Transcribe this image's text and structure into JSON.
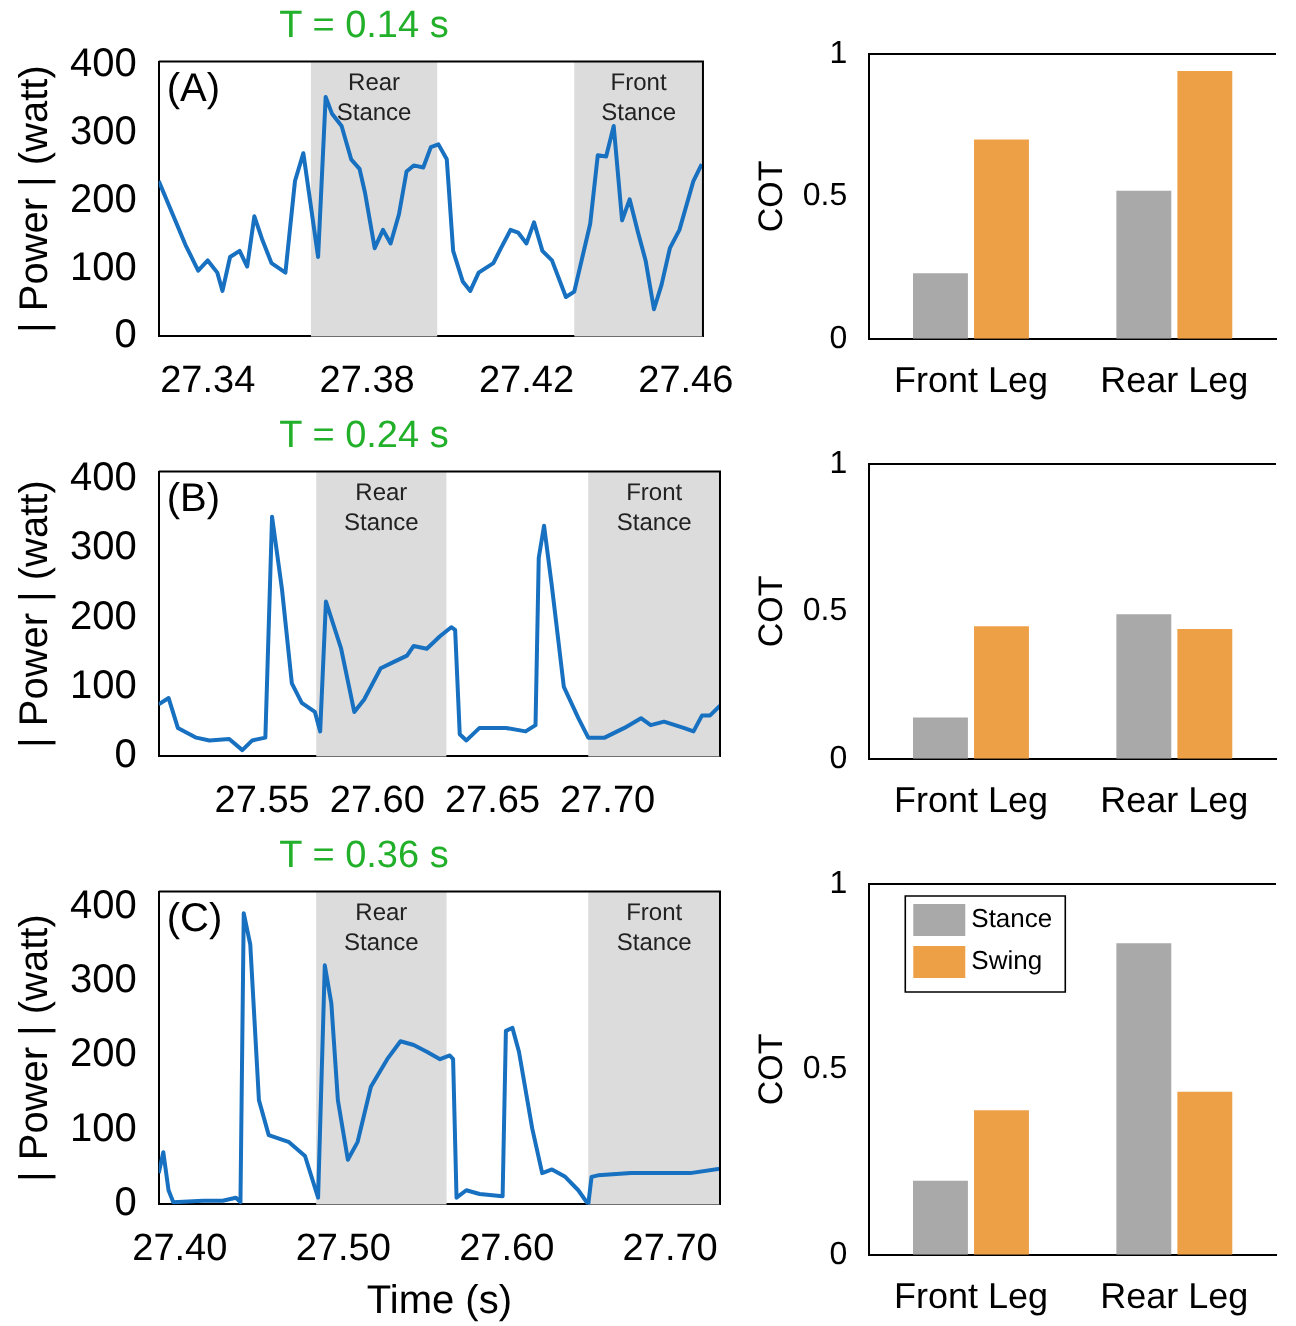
{
  "chart_data": [
    {
      "type": "line",
      "title": "T = 0.14 s",
      "ylabel": "| Power | (watt)",
      "annotations": [
        "(A)"
      ],
      "marker": "none",
      "legend": false,
      "grid": false,
      "xlim": [
        27.3277,
        27.4643
      ],
      "xticks": [
        27.34,
        27.38,
        27.42,
        27.46
      ],
      "ylim": [
        0,
        405
      ],
      "yticks": [
        0,
        100,
        200,
        300,
        400
      ],
      "bands": [
        {
          "axis": "x",
          "from": 27.3659,
          "to": 27.3976,
          "label": "Rear Stance",
          "color": "#dcdcdc"
        },
        {
          "axis": "x",
          "from": 27.432,
          "to": 27.4643,
          "label": "Front Stance",
          "color": "#dcdcdc"
        }
      ],
      "series": [
        {
          "color": "#1770c0",
          "x": [
            27.3277,
            27.3344,
            27.3376,
            27.34,
            27.3424,
            27.3437,
            27.3456,
            27.348,
            27.3499,
            27.3517,
            27.3536,
            27.356,
            27.3595,
            27.3619,
            27.364,
            27.3677,
            27.3696,
            27.3712,
            27.3736,
            27.376,
            27.3781,
            27.3795,
            27.3819,
            27.384,
            27.3859,
            27.388,
            27.3899,
            27.3917,
            27.3941,
            27.396,
            27.3979,
            27.4,
            27.4016,
            27.404,
            27.4059,
            27.408,
            27.4117,
            27.4136,
            27.416,
            27.4179,
            27.42,
            27.4219,
            27.424,
            27.4264,
            27.4299,
            27.432,
            27.436,
            27.4379,
            27.44,
            27.4419,
            27.444,
            27.4459,
            27.448,
            27.4499,
            27.452,
            27.4539,
            27.456,
            27.4584,
            27.4619,
            27.464
          ],
          "values": [
            229,
            135,
            97,
            112,
            94,
            67,
            117,
            126,
            103,
            177,
            144,
            108,
            94,
            229,
            270,
            117,
            353,
            328,
            310,
            261,
            247,
            211,
            130,
            157,
            137,
            180,
            243,
            252,
            249,
            279,
            283,
            261,
            126,
            81,
            67,
            94,
            108,
            130,
            157,
            153,
            137,
            168,
            126,
            112,
            58,
            66,
            166,
            267,
            265,
            310,
            171,
            202,
            153,
            112,
            40,
            76,
            130,
            157,
            229,
            254
          ]
        }
      ]
    },
    {
      "type": "bar",
      "ylabel": "COT",
      "legend": false,
      "grid": false,
      "categories": [
        "Front Leg",
        "Rear Leg"
      ],
      "ylim": [
        0,
        1
      ],
      "yticks": [
        0,
        0.5,
        1
      ],
      "series": [
        {
          "color": "#a9a9a9",
          "values": [
            0.23,
            0.52
          ]
        },
        {
          "color": "#eea047",
          "values": [
            0.7,
            0.94
          ]
        }
      ]
    },
    {
      "type": "line",
      "title": "T = 0.24 s",
      "ylabel": "| Power | (watt)",
      "annotations": [
        "(B)"
      ],
      "marker": "none",
      "legend": false,
      "grid": false,
      "xlim": [
        27.5051,
        27.7488
      ],
      "xticks": [
        27.55,
        {
          "value": 27.6,
          "label": "27.60"
        },
        27.65,
        {
          "value": 27.7,
          "label": "27.70"
        }
      ],
      "ylim": [
        0,
        410
      ],
      "yticks": [
        0,
        100,
        200,
        300,
        400
      ],
      "bands": [
        {
          "axis": "x",
          "from": 27.5735,
          "to": 27.63,
          "label": "Rear Stance",
          "color": "#dcdcdc"
        },
        {
          "axis": "x",
          "from": 27.6916,
          "to": 27.7488,
          "label": "Front Stance",
          "color": "#dcdcdc"
        }
      ],
      "series": [
        {
          "color": "#1770c0",
          "x": [
            27.5051,
            27.5094,
            27.5134,
            27.5214,
            27.5271,
            27.5357,
            27.5414,
            27.5457,
            27.5514,
            27.5543,
            27.5586,
            27.5629,
            27.5672,
            27.5729,
            27.5752,
            27.5777,
            27.5843,
            27.59,
            27.5943,
            27.6015,
            27.6072,
            27.6129,
            27.6158,
            27.6215,
            27.6272,
            27.6321,
            27.6338,
            27.6358,
            27.6387,
            27.6444,
            27.6501,
            27.6558,
            27.6644,
            27.6687,
            27.6701,
            27.6724,
            27.6758,
            27.681,
            27.6873,
            27.6916,
            27.6987,
            27.7073,
            27.7145,
            27.7187,
            27.7245,
            27.733,
            27.7373,
            27.741,
            27.7445,
            27.7488
          ],
          "values": [
            75,
            84,
            41,
            27,
            23,
            25,
            9,
            23,
            27,
            345,
            241,
            105,
            77,
            64,
            36,
            223,
            155,
            64,
            82,
            127,
            136,
            145,
            159,
            155,
            173,
            186,
            182,
            32,
            23,
            41,
            41,
            41,
            36,
            45,
            286,
            332,
            245,
            100,
            55,
            27,
            27,
            41,
            55,
            45,
            50,
            41,
            36,
            59,
            59,
            73
          ]
        }
      ]
    },
    {
      "type": "bar",
      "ylabel": "COT",
      "legend": false,
      "grid": false,
      "categories": [
        "Front Leg",
        "Rear Leg"
      ],
      "ylim": [
        0,
        1
      ],
      "yticks": [
        0,
        0.5,
        1
      ],
      "series": [
        {
          "color": "#a9a9a9",
          "values": [
            0.14,
            0.49
          ]
        },
        {
          "color": "#eea047",
          "values": [
            0.45,
            0.44
          ]
        }
      ]
    },
    {
      "type": "line",
      "title": "T = 0.36 s",
      "xlabel": "Time (s)",
      "ylabel": "| Power | (watt)",
      "annotations": [
        "(C)"
      ],
      "marker": "none",
      "legend": false,
      "grid": false,
      "xlim": [
        27.3871,
        27.7305
      ],
      "xticks": [
        {
          "value": 27.4,
          "label": "27.40"
        },
        {
          "value": 27.5,
          "label": "27.50"
        },
        {
          "value": 27.6,
          "label": "27.60"
        },
        {
          "value": 27.7,
          "label": "27.70"
        }
      ],
      "ylim": [
        0,
        420
      ],
      "yticks": [
        0,
        100,
        200,
        300,
        400
      ],
      "bands": [
        {
          "axis": "x",
          "from": 27.4834,
          "to": 27.5632,
          "label": "Rear Stance",
          "color": "#dcdcdc"
        },
        {
          "axis": "x",
          "from": 27.6499,
          "to": 27.7305,
          "label": "Front Stance",
          "color": "#dcdcdc"
        }
      ],
      "series": [
        {
          "color": "#1770c0",
          "x": [
            27.3871,
            27.3899,
            27.3931,
            27.396,
            27.4141,
            27.4262,
            27.4343,
            27.4371,
            27.4391,
            27.4431,
            27.4484,
            27.4544,
            27.4665,
            27.4766,
            27.4846,
            27.4887,
            27.4927,
            27.4967,
            27.5028,
            27.5088,
            27.5169,
            27.5269,
            27.535,
            27.5431,
            27.5511,
            27.5592,
            27.5652,
            27.5672,
            27.5693,
            27.5753,
            27.5834,
            27.5975,
            27.5995,
            27.6035,
            27.6075,
            27.6156,
            27.6217,
            27.6277,
            27.6358,
            27.6438,
            27.6499,
            27.6519,
            27.6559,
            27.676,
            27.6962,
            27.7123,
            27.7305
          ],
          "values": [
            42,
            70,
            19,
            3,
            5,
            5,
            9,
            3,
            391,
            349,
            140,
            93,
            84,
            65,
            9,
            321,
            270,
            140,
            60,
            84,
            158,
            195,
            219,
            214,
            205,
            195,
            200,
            195,
            9,
            19,
            14,
            11,
            233,
            237,
            205,
            102,
            42,
            47,
            37,
            19,
            0,
            37,
            39,
            42,
            42,
            42,
            48
          ]
        }
      ]
    },
    {
      "type": "bar",
      "ylabel": "COT",
      "legend": "top left",
      "grid": false,
      "categories": [
        "Front Leg",
        "Rear Leg"
      ],
      "ylim": [
        0,
        1
      ],
      "yticks": [
        0,
        0.5,
        1
      ],
      "series": [
        {
          "name": "Stance",
          "color": "#a9a9a9",
          "values": [
            0.2,
            0.84
          ]
        },
        {
          "name": "Swing",
          "color": "#eea047",
          "values": [
            0.39,
            0.44
          ]
        }
      ]
    }
  ]
}
